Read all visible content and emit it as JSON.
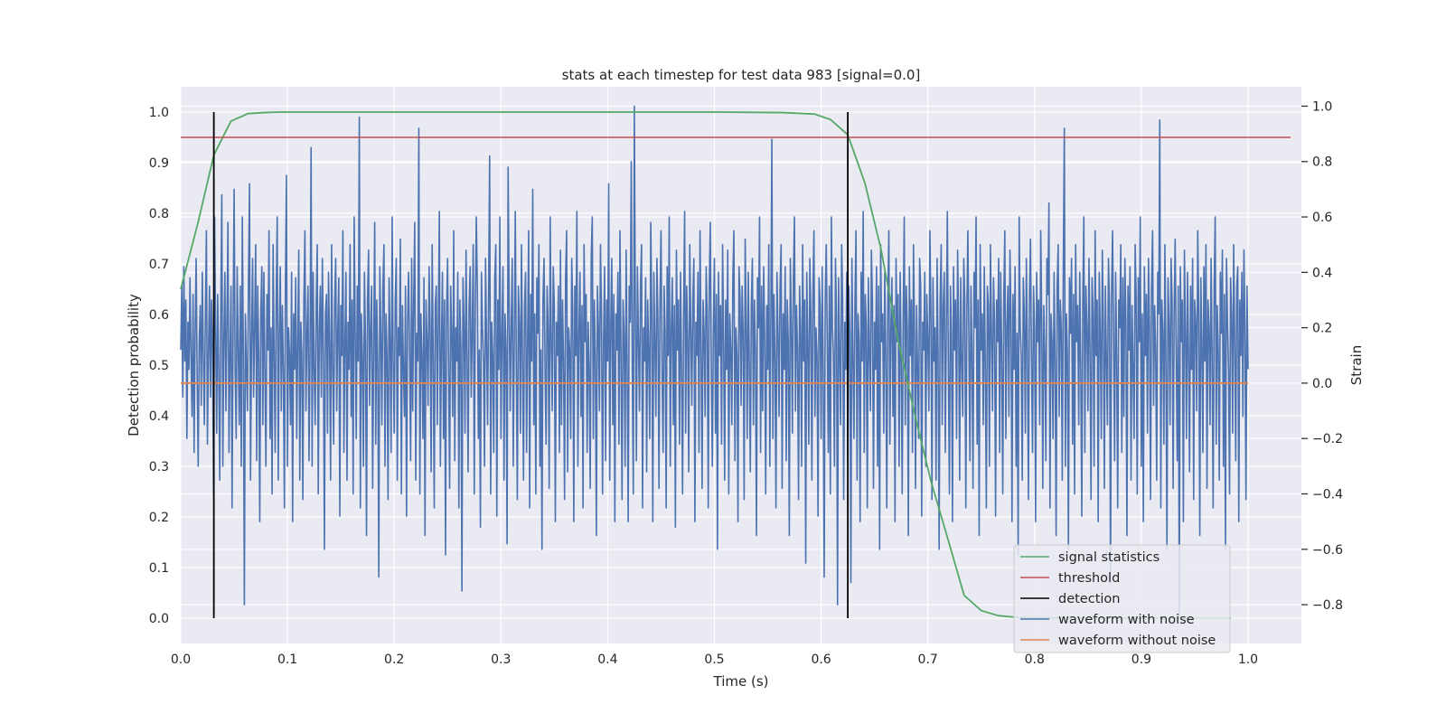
{
  "colors": {
    "signal_statistics": "#55a868",
    "threshold": "#c44e52",
    "detection": "#000000",
    "waveform_with_noise": "#4c72b0",
    "waveform_without_noise": "#dd8452",
    "axes_background": "#eaeaf2",
    "grid": "#ffffff"
  },
  "chart_data": {
    "type": "line",
    "title": "stats at each timestep for test data 983 [signal=0.0]",
    "xlabel": "Time (s)",
    "ylabel": "Detection probability",
    "ylabel_right": "Strain",
    "xlim": [
      0.0,
      1.05
    ],
    "ylim": [
      -0.05,
      1.05
    ],
    "ylim_right": [
      -0.94,
      1.07
    ],
    "xticks": [
      "0.0",
      "0.1",
      "0.2",
      "0.3",
      "0.4",
      "0.5",
      "0.6",
      "0.7",
      "0.8",
      "0.9",
      "1.0"
    ],
    "yticks": [
      "0.0",
      "0.1",
      "0.2",
      "0.3",
      "0.4",
      "0.5",
      "0.6",
      "0.7",
      "0.8",
      "0.9",
      "1.0"
    ],
    "yticks_right": [
      "−0.8",
      "−0.6",
      "−0.4",
      "−0.2",
      "0.0",
      "0.2",
      "0.4",
      "0.6",
      "0.8",
      "1.0"
    ],
    "grid": true,
    "legend_position": "lower-right",
    "legend": [
      "signal statistics",
      "threshold",
      "detection",
      "waveform with noise",
      "waveform without noise"
    ],
    "series": [
      {
        "name": "signal statistics",
        "axis": "left",
        "x": [
          0.0,
          0.016,
          0.031,
          0.047,
          0.063,
          0.078,
          0.094,
          0.109,
          0.125,
          0.2,
          0.3,
          0.4,
          0.5,
          0.563,
          0.594,
          0.609,
          0.625,
          0.641,
          0.656,
          0.672,
          0.688,
          0.703,
          0.719,
          0.734,
          0.75,
          0.766,
          0.781,
          0.797,
          0.85,
          0.9,
          0.95,
          0.984
        ],
        "y": [
          0.65,
          0.78,
          0.915,
          0.982,
          0.997,
          0.999,
          1.0,
          1.0,
          1.0,
          1.0,
          1.0,
          1.0,
          1.0,
          0.999,
          0.996,
          0.985,
          0.955,
          0.86,
          0.73,
          0.55,
          0.4,
          0.27,
          0.155,
          0.045,
          0.015,
          0.005,
          0.002,
          0.001,
          0.0,
          0.0,
          0.0,
          0.0
        ]
      },
      {
        "name": "threshold",
        "axis": "left",
        "x": [
          0.0,
          1.04
        ],
        "y": [
          0.95,
          0.95
        ]
      },
      {
        "name": "detection",
        "axis": "left",
        "x_positions": [
          0.031,
          0.625
        ],
        "y": [
          0.0,
          1.0
        ]
      },
      {
        "name": "waveform with noise",
        "axis": "right",
        "t_start": 0.0,
        "t_end": 1.0,
        "samples": [
          0.12,
          0.35,
          -0.05,
          0.42,
          0.08,
          0.3,
          -0.2,
          0.22,
          0.05,
          0.38,
          0.1,
          -0.12,
          0.32,
          -0.25,
          0.18,
          0.45,
          0.02,
          -0.3,
          0.15,
          0.28,
          -0.08,
          0.4,
          0.1,
          -0.15,
          0.25,
          0.55,
          -0.22,
          0.1,
          0.35,
          -0.05,
          0.3,
          0.12,
          -0.4,
          0.6,
          0.2,
          -0.18,
          0.32,
          0.05,
          -0.35,
          0.25,
          0.68,
          -0.3,
          0.15,
          0.4,
          -0.1,
          0.22,
          0.58,
          -0.25,
          0.1,
          0.35,
          -0.45,
          0.2,
          0.7,
          0.05,
          -0.2,
          0.42,
          0.12,
          -0.15,
          0.35,
          -0.3,
          0.6,
          0.1,
          -0.8,
          0.25,
          0.05,
          -0.1,
          0.38,
          0.72,
          -0.35,
          0.15,
          0.45,
          -0.05,
          0.2,
          0.5,
          -0.28,
          0.35,
          0.1,
          -0.5,
          0.25,
          0.42,
          -0.15,
          0.4,
          0.05,
          -0.3,
          0.32,
          0.12,
          0.55,
          -0.2,
          0.2,
          -0.4,
          0.5,
          0.1,
          -0.25,
          0.3,
          0.6,
          -0.35,
          0.18,
          0.42,
          -0.1,
          0.28,
          0.05,
          -0.45,
          0.35,
          0.75,
          -0.3,
          0.2,
          0.1,
          -0.15,
          0.4,
          -0.5,
          0.25,
          0.05,
          0.38,
          -0.2,
          0.15,
          0.48,
          -0.35,
          0.22,
          0.1,
          -0.42,
          0.3,
          0.55,
          -0.1,
          0.18,
          0.35,
          -0.28,
          0.12,
          0.85,
          -0.3,
          0.4,
          0.05,
          -0.15,
          0.28,
          0.5,
          -0.4,
          0.2,
          0.35,
          -0.05,
          0.45,
          0.1,
          -0.6,
          0.25,
          0.32,
          -0.18,
          0.4,
          0.15,
          -0.35,
          0.5,
          0.08,
          -0.22,
          0.3,
          0.45,
          -0.1,
          0.2,
          0.38,
          -0.48,
          0.28,
          0.1,
          0.55,
          -0.25,
          0.15,
          0.4,
          -0.35,
          0.22,
          0.05,
          0.5,
          -0.12,
          0.3,
          -0.4,
          0.6,
          0.18,
          -0.2,
          0.35,
          0.08,
          0.96,
          -0.45,
          0.25,
          0.1,
          -0.3,
          0.4,
          0.15,
          -0.55,
          0.3,
          0.48,
          -0.08,
          0.2,
          0.35,
          -0.38,
          0.12,
          0.58,
          -0.22,
          0.3,
          0.05,
          -0.7,
          0.42,
          0.18,
          -0.15,
          0.35,
          0.5,
          -0.3,
          0.25,
          0.1,
          -0.42,
          0.38,
          0.15,
          -0.25,
          0.6,
          0.08,
          -0.18,
          0.3,
          0.45,
          -0.35,
          0.2,
          0.1,
          0.52,
          -0.4,
          0.28,
          0.05,
          -0.12,
          0.35,
          -0.48,
          0.22,
          0.4,
          0.12,
          -0.28,
          0.45,
          -0.1,
          0.3,
          0.58,
          -0.35,
          0.18,
          0.08,
          0.92,
          -0.4,
          0.25,
          0.1,
          -0.2,
          0.38,
          -0.55,
          0.3,
          0.15,
          -0.08,
          0.42,
          0.2,
          -0.32,
          0.5,
          0.1,
          -0.45,
          0.28,
          0.35,
          -0.15,
          0.22,
          0.62,
          -0.3,
          0.12,
          0.4,
          -0.2,
          0.3,
          -0.62,
          0.25,
          0.45,
          0.05,
          -0.38,
          0.35,
          0.18,
          -0.12,
          0.55,
          -0.28,
          0.2,
          0.08,
          0.4,
          -0.45,
          0.3,
          0.12,
          -0.75,
          0.38,
          0.22,
          -0.18,
          0.48,
          0.1,
          -0.32,
          0.28,
          0.42,
          -0.05,
          0.18,
          0.5,
          -0.4,
          0.25,
          0.6,
          0.35,
          -0.2,
          0.12,
          -0.52,
          0.4,
          0.2,
          0.08,
          -0.3,
          0.45,
          0.15,
          -0.15,
          0.32,
          0.82,
          -0.4,
          0.22,
          0.1,
          -0.25,
          0.38,
          0.5,
          -0.48,
          0.3,
          0.05,
          0.6,
          -0.2,
          0.18,
          0.42,
          -0.35,
          0.25,
          0.12,
          -0.58,
          0.78,
          0.3,
          -0.1,
          0.2,
          0.45,
          -0.3,
          0.15,
          0.62,
          0.05,
          -0.42,
          0.35,
          0.22,
          -0.18,
          0.5,
          0.1,
          -0.35,
          0.28,
          0.4,
          -0.25,
          0.15,
          0.55,
          -0.45,
          0.32,
          0.08,
          0.7,
          -0.15,
          0.25,
          -0.4,
          0.38,
          0.18,
          0.5,
          -0.3,
          0.12,
          -0.6,
          0.3,
          0.45,
          0.05,
          -0.22,
          0.35,
          0.2,
          -0.38,
          0.6,
          0.15,
          -0.1,
          0.42,
          0.28,
          -0.5,
          0.22,
          0.1,
          0.35,
          -0.25,
          0.48,
          -0.15,
          0.3,
          0.08,
          -0.42,
          0.38,
          0.55,
          -0.32,
          0.2,
          0.12,
          -0.2,
          0.45,
          0.25,
          -0.5,
          0.35,
          0.1,
          0.62,
          -0.3,
          0.18,
          0.4,
          -0.12,
          0.28,
          -0.45,
          0.5,
          0.15,
          0.32,
          -0.25,
          0.22,
          0.05,
          -0.38,
          0.45,
          0.6,
          -0.2,
          0.3,
          0.1,
          -0.55,
          0.35,
          0.2,
          -0.1,
          0.5,
          0.25,
          -0.4,
          0.15,
          0.42,
          -0.28,
          0.3,
          0.08,
          0.72,
          -0.35,
          0.2,
          0.45,
          -0.15,
          0.32,
          -0.5,
          0.25,
          0.12,
          0.4,
          -0.22,
          0.55,
          0.1,
          -0.42,
          0.3,
          0.18,
          -0.3,
          0.48,
          0.06,
          -0.5,
          0.35,
          0.22,
          0.8,
          0.05,
          -0.4,
          1.0,
          0.25,
          -0.28,
          0.42,
          0.15,
          -0.1,
          0.35,
          0.5,
          -0.45,
          0.2,
          0.08,
          0.38,
          -0.32,
          0.3,
          0.12,
          -0.2,
          0.58,
          0.25,
          -0.5,
          0.4,
          0.15,
          -0.12,
          0.45,
          0.22,
          -0.38,
          0.3,
          0.55,
          0.05,
          -0.25,
          0.35,
          0.18,
          -0.45,
          0.42,
          0.1,
          0.6,
          -0.3,
          0.2,
          0.38,
          -0.15,
          0.28,
          -0.52,
          0.48,
          0.12,
          0.3,
          -0.22,
          0.4,
          0.05,
          -0.4,
          0.25,
          0.62,
          -0.18,
          0.35,
          0.15,
          -0.32,
          0.5,
          0.2,
          -0.08,
          0.3,
          0.45,
          -0.5,
          0.22,
          0.1,
          0.4,
          -0.25,
          0.55,
          0.15,
          -0.38,
          0.3,
          0.18,
          -0.12,
          0.42,
          0.25,
          -0.45,
          0.35,
          0.58,
          0.05,
          -0.3,
          0.2,
          0.45,
          -0.18,
          0.32,
          -0.6,
          0.4,
          0.1,
          0.28,
          -0.22,
          0.5,
          0.15,
          -0.35,
          0.3,
          0.05,
          0.48,
          -0.4,
          0.25,
          0.12,
          -0.15,
          0.38,
          0.55,
          -0.28,
          0.2,
          0.1,
          -0.5,
          0.42,
          0.3,
          -0.08,
          0.35,
          0.18,
          -0.42,
          0.52,
          0.22,
          -0.2,
          0.4,
          0.08,
          -0.32,
          0.28,
          0.45,
          -0.15,
          0.3,
          0.12,
          -0.55,
          0.38,
          0.2,
          0.6,
          -0.25,
          0.35,
          -0.1,
          0.42,
          0.15,
          -0.4,
          0.28,
          0.05,
          0.5,
          -0.3,
          0.22,
          0.88,
          -0.2,
          0.32,
          0.1,
          -0.45,
          0.4,
          0.18,
          -0.12,
          0.35,
          0.5,
          -0.38,
          0.25,
          0.05,
          0.42,
          -0.28,
          0.3,
          0.15,
          -0.55,
          0.45,
          0.22,
          -0.18,
          0.38,
          0.6,
          -0.1,
          0.28,
          0.12,
          -0.42,
          0.35,
          0.2,
          -0.3,
          0.5,
          0.08,
          0.3,
          -0.65,
          0.4,
          0.15,
          -0.22,
          0.45,
          0.25,
          -0.35,
          0.32,
          0.55,
          -0.12,
          0.2,
          0.1,
          -0.48,
          0.38,
          0.28,
          -0.2,
          0.42,
          0.05,
          -0.7,
          0.3,
          0.5,
          0.15,
          -0.25,
          0.35,
          -0.4,
          0.6,
          0.2,
          0.1,
          -0.3,
          0.45,
          0.25,
          -0.8,
          0.38,
          0.12,
          -0.15,
          0.5,
          0.3,
          -0.42,
          0.22,
          0.05,
          0.4,
          -0.28,
          0.35,
          0.18,
          -0.72,
          0.45,
          0.1,
          -0.2,
          0.3,
          0.55,
          -0.35,
          0.25,
          0.15,
          -0.5,
          0.4,
          0.08,
          0.62,
          -0.25,
          0.32,
          0.2,
          -0.45,
          0.38,
          0.12,
          -0.1,
          0.48,
          0.3,
          -0.38,
          0.22,
          0.05,
          0.42,
          -0.3,
          0.35,
          -0.6,
          0.5,
          0.15,
          0.25,
          -0.18,
          0.4,
          0.1,
          -0.45,
          0.3,
          0.55,
          -0.22,
          0.2,
          0.38,
          -0.12,
          0.28,
          -0.5,
          0.45,
          0.15,
          0.32,
          -0.3,
          0.4,
          0.08,
          -0.4,
          0.25,
          0.6,
          -0.15,
          0.35,
          0.2,
          -0.55,
          0.42,
          0.1,
          0.3,
          -0.25,
          0.5,
          0.18,
          -0.38,
          0.28,
          0.05,
          -0.2,
          0.45,
          0.35,
          -0.48,
          0.22,
          0.12,
          0.4,
          -0.3,
          0.32,
          0.15,
          -0.1,
          0.55,
          0.25,
          -0.42,
          0.38,
          0.08,
          0.2,
          -0.35,
          0.45,
          0.1,
          -0.6,
          0.3,
          0.5,
          -0.15,
          0.28,
          0.4,
          -0.25,
          0.2,
          0.62,
          0.05,
          -0.4,
          0.35,
          0.18,
          -0.5,
          0.42,
          0.12,
          0.3,
          -0.2,
          0.48,
          0.22,
          -0.35,
          0.38,
          0.08,
          -0.12,
          0.45,
          0.3,
          -0.45,
          0.25,
          0.55,
          0.15,
          -0.28,
          0.35,
          0.1,
          -0.38,
          0.4,
          0.2,
          0.6,
          -0.22,
          0.3,
          -0.55,
          0.5,
          0.12,
          0.25,
          -0.15,
          0.42,
          0.05,
          -0.45,
          0.35,
          0.28,
          -0.3,
          0.5,
          0.18,
          -0.1,
          0.38,
          0.22,
          -0.48,
          0.3,
          0.15,
          0.45,
          -0.25,
          0.4,
          0.1,
          -0.4,
          0.3,
          0.55,
          -0.2,
          0.2,
          0.35,
          -0.12,
          0.48,
          0.25,
          -0.5,
          0.32,
          0.05,
          0.42,
          -0.3,
          0.18,
          -0.62,
          0.6,
          0.2,
          0.1,
          -0.35,
          0.38,
          0.25,
          -0.18,
          0.45,
          0.12,
          -0.42,
          0.3,
          0.52,
          0.08,
          -0.25,
          0.35,
          0.2,
          -0.5,
          0.4,
          0.15,
          0.3,
          -0.15,
          0.55,
          0.22,
          -0.38,
          0.28,
          0.1,
          -0.28,
          0.45,
          0.32,
          0.65,
          -0.45,
          0.25,
          0.15,
          -0.2,
          0.4,
          0.08,
          -0.55,
          0.35,
          0.5,
          -0.12,
          0.3,
          0.2,
          -0.35,
          0.42,
          0.92,
          -0.3,
          0.25,
          0.1,
          -0.6,
          0.38,
          0.18,
          0.45,
          -0.22,
          0.32,
          -0.4,
          0.5,
          0.15,
          0.28,
          -0.15,
          0.4,
          0.05,
          -0.48,
          0.3,
          0.6,
          -0.25,
          0.35,
          0.2,
          -0.1,
          0.45,
          0.12,
          -0.42,
          0.38,
          0.25,
          -0.3,
          0.55,
          0.1,
          0.3,
          -0.5,
          0.4,
          0.18,
          -0.2,
          0.48,
          0.22,
          -0.38,
          0.35,
          0.08,
          -0.15,
          0.45,
          0.28,
          -0.72,
          0.32,
          0.55,
          0.15,
          -0.28,
          0.4,
          0.1,
          -0.45,
          0.3,
          0.2,
          0.5,
          -0.25,
          0.38,
          -0.12,
          0.45,
          0.22,
          -0.55,
          0.35,
          0.12,
          0.42,
          -0.35,
          0.28,
          0.05,
          -0.2,
          0.5,
          0.3,
          -0.4,
          0.38,
          0.15,
          0.6,
          -0.3,
          0.25,
          -0.5,
          0.42,
          0.1,
          0.32,
          -0.18,
          0.45,
          0.2,
          -0.42,
          0.35,
          0.55,
          -0.08,
          0.28,
          0.12,
          -0.35,
          0.4,
          0.25,
          0.95,
          -0.45,
          0.3,
          0.18,
          -0.22,
          0.5,
          0.08,
          -0.6,
          0.38,
          0.22,
          -0.15,
          0.45,
          0.3,
          -0.38,
          0.25,
          0.52,
          0.1,
          -0.28,
          0.35,
          -0.85,
          0.42,
          0.15,
          0.3,
          -0.5,
          0.48,
          0.2,
          -0.2,
          0.4,
          0.12,
          -0.32,
          0.35,
          0.05,
          0.45,
          -0.42,
          0.3,
          0.22,
          -0.1,
          0.55,
          0.25,
          -0.55,
          0.38,
          0.15,
          -0.25,
          0.42,
          0.08,
          0.5,
          -0.38,
          0.3,
          0.2,
          -0.15,
          0.45,
          0.1,
          -0.45,
          0.35,
          0.6,
          -0.22,
          0.28,
          0.12,
          -0.35,
          0.4,
          0.18,
          0.48,
          -0.3,
          0.32,
          -0.6,
          0.45,
          0.22,
          0.05,
          -0.4,
          0.38,
          0.25,
          -0.18,
          0.5,
          0.15,
          -0.28,
          0.35,
          0.42,
          -0.5,
          0.3,
          0.1,
          0.4,
          -0.12,
          0.48,
          0.2,
          -0.42,
          0.35,
          0.05
        ]
      },
      {
        "name": "waveform without noise",
        "axis": "right",
        "x": [
          0.0,
          1.0
        ],
        "y": [
          0.0,
          0.0
        ]
      }
    ]
  }
}
